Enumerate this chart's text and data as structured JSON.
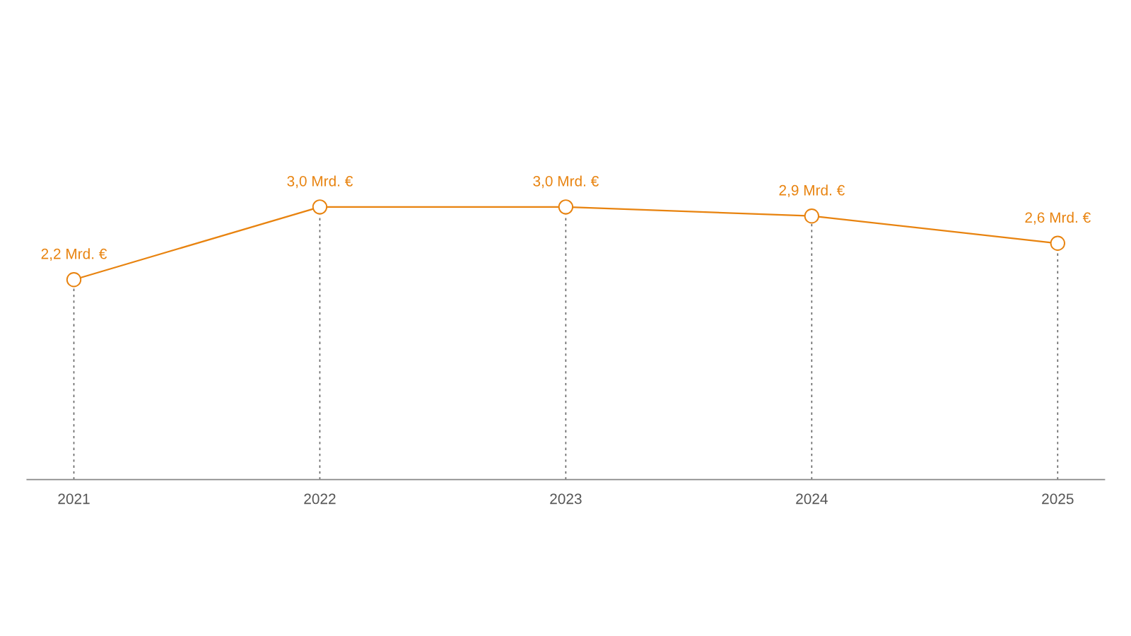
{
  "chart_data": {
    "type": "line",
    "categories": [
      "2021",
      "2022",
      "2023",
      "2024",
      "2025"
    ],
    "series": [
      {
        "color": "#e8830f",
        "values": [
          2.2,
          3.0,
          3.0,
          2.9,
          2.6
        ],
        "value_labels": [
          "2,2 Mrd. €",
          "3,0 Mrd. €",
          "3,0 Mrd. €",
          "2,9 Mrd. €",
          "2,6 Mrd. €"
        ]
      }
    ],
    "marker": "circle",
    "line_style": "solid",
    "grid": "x",
    "tick_labels": "x",
    "legend": false
  }
}
